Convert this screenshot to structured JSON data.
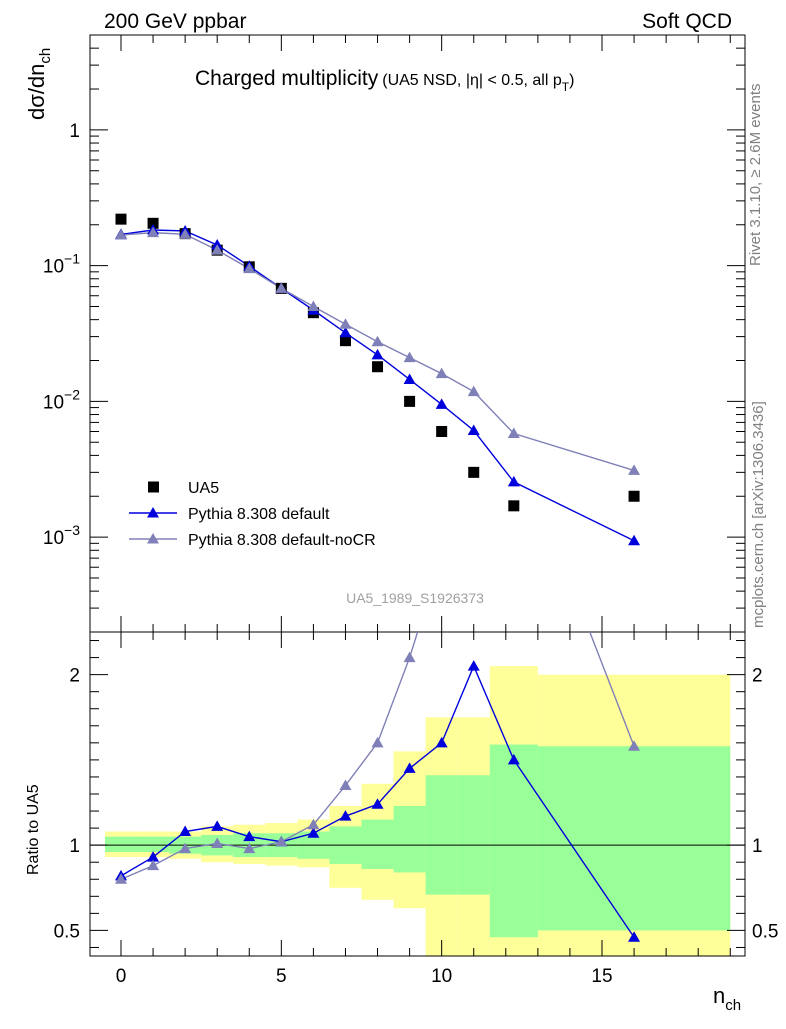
{
  "header": {
    "left": "200 GeV ppbar",
    "right": "Soft QCD"
  },
  "side_labels": {
    "rivet": "Rivet 3.1.10, ≥ 2.6M events",
    "mcplots": "mcplots.cern.ch [arXiv:1306.3436]"
  },
  "chart_data": {
    "type": "scatter",
    "title": "Charged multiplicity",
    "subtitle_main": "(UA5 NSD, |η| < 0.5, all p",
    "subtitle_sub": "T",
    "subtitle_end": ")",
    "watermark": "UA5_1989_S1926373",
    "ylabel_main": "dσ/dn",
    "ylabel_sub": "ch",
    "xlabel_main": "n",
    "xlabel_sub": "ch",
    "ratio_ylabel": "Ratio to UA5",
    "xlim": [
      -0.9,
      19.2
    ],
    "ylim": [
      0.0002,
      5
    ],
    "yscale": "log",
    "ratio_ylim": [
      0.35,
      2.25
    ],
    "x_ticks": [
      "0",
      "5",
      "10",
      "15"
    ],
    "y_ticks": [
      "10",
      "10",
      "10",
      "1"
    ],
    "y_tick_exps": [
      "−3",
      "−2",
      "−1",
      ""
    ],
    "ratio_ticks": [
      "0.5",
      "1",
      "2"
    ],
    "series": [
      {
        "name": "UA5",
        "color": "#000000",
        "marker": "square",
        "x": [
          0,
          1,
          2,
          3,
          4,
          5,
          6,
          7,
          8,
          9,
          10,
          11,
          12.25,
          16
        ],
        "y": [
          0.22,
          0.205,
          0.172,
          0.13,
          0.098,
          0.068,
          0.045,
          0.028,
          0.018,
          0.01,
          0.006,
          0.003,
          0.0017,
          0.002
        ]
      },
      {
        "name": "Pythia 8.308 default",
        "color": "#0000dd",
        "marker": "triangle",
        "x": [
          0,
          1,
          2,
          3,
          4,
          5,
          6,
          7,
          8,
          9,
          10,
          11,
          12.25,
          16
        ],
        "y": [
          0.17,
          0.183,
          0.18,
          0.142,
          0.099,
          0.068,
          0.047,
          0.032,
          0.022,
          0.0145,
          0.0095,
          0.0061,
          0.00255,
          0.00094
        ],
        "ratio": [
          0.82,
          0.93,
          1.08,
          1.11,
          1.05,
          1.02,
          1.07,
          1.17,
          1.24,
          1.45,
          1.6,
          2.05,
          1.5,
          0.46
        ]
      },
      {
        "name": "Pythia 8.308 default-noCR",
        "color": "#8080b8",
        "marker": "triangle",
        "x": [
          0,
          1,
          2,
          3,
          4,
          5,
          6,
          7,
          8,
          9,
          10,
          11,
          12.25,
          16
        ],
        "y": [
          0.168,
          0.175,
          0.17,
          0.13,
          0.095,
          0.068,
          0.05,
          0.037,
          0.0275,
          0.021,
          0.016,
          0.0118,
          0.0058,
          0.0031
        ],
        "ratio": [
          0.8,
          0.88,
          0.98,
          1.01,
          0.98,
          1.02,
          1.12,
          1.35,
          1.6,
          2.1,
          2.7,
          3.9,
          3.4,
          1.58
        ]
      }
    ],
    "bands": {
      "edges": [
        -0.5,
        0.5,
        1.5,
        2.5,
        3.5,
        4.5,
        5.5,
        6.5,
        7.5,
        8.5,
        9.5,
        10.5,
        11.5,
        13,
        19
      ],
      "inner_lo": [
        0.96,
        0.96,
        0.95,
        0.94,
        0.93,
        0.93,
        0.92,
        0.89,
        0.86,
        0.84,
        0.71,
        0.71,
        0.46,
        0.5
      ],
      "inner_hi": [
        1.05,
        1.05,
        1.05,
        1.06,
        1.07,
        1.07,
        1.08,
        1.11,
        1.15,
        1.23,
        1.41,
        1.41,
        1.59,
        1.58
      ],
      "outer_lo": [
        0.93,
        0.93,
        0.92,
        0.9,
        0.89,
        0.88,
        0.87,
        0.75,
        0.68,
        0.63,
        0.35,
        0.35,
        0.35,
        0.35
      ],
      "outer_hi": [
        1.08,
        1.08,
        1.08,
        1.11,
        1.12,
        1.13,
        1.15,
        1.23,
        1.36,
        1.55,
        1.75,
        1.75,
        2.05,
        2.0
      ],
      "inner_color": "#99ff99",
      "outer_color": "#ffff99"
    }
  }
}
